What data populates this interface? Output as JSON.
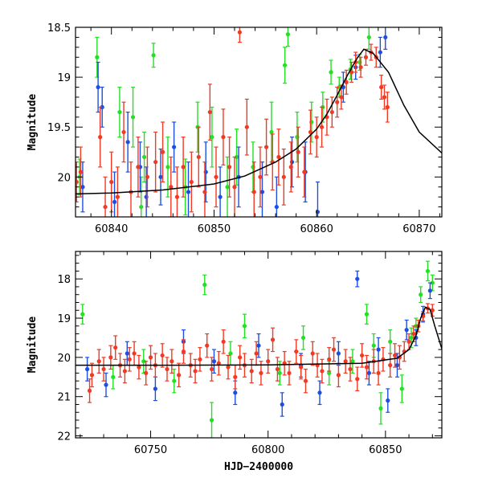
{
  "chart_data": [
    {
      "type": "scatter",
      "title": "",
      "xlabel": "",
      "ylabel": "Magnitude",
      "xlim": [
        60836.5,
        60872.2
      ],
      "ylim": [
        20.4,
        18.5
      ],
      "y_inverted": true,
      "xticks": [
        60840,
        60850,
        60860,
        60870
      ],
      "yticks": [
        18.5,
        19,
        19.5,
        20
      ],
      "ytick_labels": [
        "18.5",
        "19",
        "19.5",
        "20"
      ],
      "colors": {
        "green": "#22e022",
        "blue": "#1c4fe0",
        "red": "#f03a24",
        "model": "#000000"
      },
      "model_curve": {
        "x": [
          60836.5,
          60840,
          60845,
          60850,
          60853,
          60856,
          60858,
          60860,
          60861,
          60862,
          60863,
          60864,
          60864.6,
          60865.5,
          60867,
          60868.5,
          60870,
          60872.2
        ],
        "y": [
          20.17,
          20.16,
          20.13,
          20.07,
          19.99,
          19.85,
          19.72,
          19.52,
          19.37,
          19.18,
          18.98,
          18.8,
          18.72,
          18.76,
          18.95,
          19.28,
          19.55,
          19.76
        ]
      },
      "series": [
        {
          "color": "green",
          "x": [
            60836.9,
            60838.6,
            60840.8,
            60842.1,
            60842.9,
            60843.2,
            60844.1,
            60845.5,
            60847.2,
            60848.4,
            60849.8,
            60851.3,
            60852.2,
            60853.8,
            60855.6,
            60856.9,
            60857.2,
            60858.1,
            60859.5,
            60860.6,
            60861.4,
            60862.2,
            60863.3,
            60864.2,
            60865.1
          ],
          "y": [
            20.0,
            18.8,
            19.35,
            19.4,
            20.3,
            19.8,
            18.78,
            19.9,
            20.1,
            19.5,
            19.6,
            20.1,
            19.8,
            19.9,
            19.55,
            18.88,
            18.57,
            19.6,
            19.45,
            19.3,
            18.95,
            19.1,
            18.92,
            18.85,
            18.6
          ],
          "err": [
            0.18,
            0.2,
            0.25,
            0.3,
            0.3,
            0.25,
            0.12,
            0.3,
            0.28,
            0.25,
            0.3,
            0.3,
            0.28,
            0.25,
            0.3,
            0.18,
            0.12,
            0.25,
            0.2,
            0.15,
            0.12,
            0.1,
            0.1,
            0.08,
            0.12
          ]
        },
        {
          "color": "blue",
          "x": [
            60837.2,
            60838.7,
            60839.1,
            60840.3,
            60841.6,
            60842.8,
            60843.4,
            60844.8,
            60846.1,
            60847.5,
            60849.2,
            60850.6,
            60852.4,
            60854.7,
            60856.1,
            60857.6,
            60858.9,
            60860.1,
            60862.6,
            60863.8,
            60866.2,
            60866.7
          ],
          "y": [
            20.1,
            19.1,
            19.3,
            20.25,
            19.65,
            19.9,
            20.2,
            20.0,
            19.7,
            20.15,
            19.95,
            20.2,
            20.0,
            20.15,
            20.3,
            19.85,
            19.95,
            20.35,
            19.1,
            18.9,
            18.75,
            18.6
          ],
          "err": [
            0.25,
            0.25,
            0.2,
            0.3,
            0.3,
            0.25,
            0.3,
            0.28,
            0.25,
            0.3,
            0.3,
            0.3,
            0.3,
            0.3,
            0.3,
            0.25,
            0.3,
            0.3,
            0.15,
            0.12,
            0.15,
            0.12
          ]
        },
        {
          "color": "red",
          "x": [
            60836.6,
            60837.0,
            60838.9,
            60839.4,
            60840.0,
            60840.6,
            60841.2,
            60841.9,
            60842.6,
            60843.5,
            60844.3,
            60845.0,
            60845.8,
            60846.4,
            60847.0,
            60847.8,
            60848.5,
            60849.1,
            60849.6,
            60850.2,
            60850.9,
            60851.5,
            60852.0,
            60852.5,
            60853.2,
            60853.9,
            60854.5,
            60855.1,
            60855.7,
            60856.3,
            60856.8,
            60857.5,
            60858.2,
            60858.8,
            60859.4,
            60860.0,
            60860.5,
            60861.0,
            60861.5,
            60862.0,
            60862.4,
            60862.9,
            60863.4,
            60863.8,
            60864.3,
            60864.8,
            60865.3,
            60865.8,
            60866.3,
            60866.6,
            60866.9
          ],
          "y": [
            20.05,
            19.95,
            19.6,
            20.3,
            20.05,
            20.2,
            19.55,
            20.15,
            19.9,
            20.0,
            19.85,
            19.75,
            20.1,
            20.2,
            19.9,
            20.05,
            19.8,
            20.15,
            19.35,
            20.0,
            19.6,
            19.9,
            20.1,
            18.55,
            19.5,
            20.15,
            20.0,
            19.7,
            19.85,
            19.8,
            20.0,
            19.9,
            19.75,
            19.95,
            19.55,
            19.6,
            19.5,
            19.4,
            19.35,
            19.25,
            19.2,
            19.05,
            18.95,
            18.85,
            18.9,
            18.8,
            18.75,
            18.8,
            19.1,
            19.2,
            19.3
          ],
          "err": [
            0.2,
            0.25,
            0.3,
            0.3,
            0.3,
            0.3,
            0.3,
            0.3,
            0.3,
            0.3,
            0.3,
            0.3,
            0.3,
            0.3,
            0.3,
            0.3,
            0.3,
            0.3,
            0.28,
            0.3,
            0.28,
            0.3,
            0.3,
            0.1,
            0.28,
            0.3,
            0.3,
            0.28,
            0.28,
            0.28,
            0.28,
            0.25,
            0.25,
            0.25,
            0.22,
            0.2,
            0.2,
            0.18,
            0.15,
            0.15,
            0.12,
            0.12,
            0.1,
            0.1,
            0.1,
            0.08,
            0.08,
            0.1,
            0.12,
            0.12,
            0.15
          ]
        }
      ]
    },
    {
      "type": "scatter",
      "title": "",
      "xlabel": "HJD−2400000",
      "ylabel": "Magnitude",
      "xlim": [
        60718,
        60874
      ],
      "ylim": [
        22.05,
        17.3
      ],
      "y_inverted": true,
      "xticks": [
        60750,
        60800,
        60850
      ],
      "yticks": [
        18,
        19,
        20,
        21,
        22
      ],
      "ytick_labels": [
        "18",
        "19",
        "20",
        "21",
        "22"
      ],
      "colors": {
        "green": "#22e022",
        "blue": "#1c4fe0",
        "red": "#f03a24",
        "model": "#000000"
      },
      "model_curve": {
        "x": [
          60718,
          60760,
          60800,
          60840,
          60855,
          60860,
          60863,
          60865,
          60867,
          60869,
          60871,
          60874
        ],
        "y": [
          20.2,
          20.2,
          20.19,
          20.15,
          20.02,
          19.8,
          19.45,
          19.0,
          18.72,
          18.78,
          19.2,
          19.78
        ]
      },
      "series": [
        {
          "color": "green",
          "x": [
            60721,
            60734,
            60747,
            60760,
            60773,
            60776,
            60784,
            60790,
            60805,
            60815,
            60826,
            60836,
            60842,
            60845,
            60848,
            60852,
            60857,
            60861,
            60863,
            60865,
            60868,
            60870
          ],
          "y": [
            18.9,
            20.5,
            20.1,
            20.6,
            18.15,
            21.6,
            19.9,
            19.2,
            20.4,
            19.5,
            20.4,
            20.1,
            18.9,
            19.7,
            21.3,
            19.6,
            20.8,
            19.5,
            19.2,
            18.4,
            17.8,
            18.1
          ],
          "err": [
            0.25,
            0.3,
            0.3,
            0.3,
            0.25,
            0.45,
            0.3,
            0.3,
            0.3,
            0.3,
            0.3,
            0.3,
            0.25,
            0.3,
            0.4,
            0.3,
            0.35,
            0.25,
            0.2,
            0.2,
            0.25,
            0.2
          ]
        },
        {
          "color": "blue",
          "x": [
            60723,
            60731,
            60740,
            60752,
            60764,
            60777,
            60786,
            60796,
            60806,
            60814,
            60822,
            60830,
            60838,
            60843,
            60847,
            60851,
            60855,
            60859,
            60863,
            60866,
            60869
          ],
          "y": [
            20.3,
            20.7,
            19.9,
            20.8,
            19.6,
            20.1,
            20.9,
            19.7,
            21.2,
            20.2,
            20.9,
            19.9,
            18.0,
            20.4,
            19.8,
            21.1,
            20.2,
            19.3,
            19.5,
            18.9,
            18.3
          ],
          "err": [
            0.3,
            0.3,
            0.3,
            0.3,
            0.3,
            0.3,
            0.3,
            0.3,
            0.3,
            0.3,
            0.3,
            0.3,
            0.2,
            0.3,
            0.3,
            0.3,
            0.3,
            0.25,
            0.2,
            0.2,
            0.2
          ]
        },
        {
          "color": "red",
          "x": [
            60724,
            60725,
            60728,
            60730,
            60733,
            60735,
            60737,
            60739,
            60741,
            60743,
            60745,
            60748,
            60750,
            60752,
            60755,
            60757,
            60759,
            60762,
            60764,
            60767,
            60769,
            60771,
            60774,
            60776,
            60779,
            60781,
            60783,
            60786,
            60788,
            60790,
            60793,
            60795,
            60797,
            60800,
            60802,
            60804,
            60807,
            60809,
            60812,
            60814,
            60816,
            60819,
            60821,
            60823,
            60826,
            60828,
            60830,
            60833,
            60835,
            60838,
            60840,
            60842,
            60845,
            60847,
            60849,
            60852,
            60854,
            60856,
            60858,
            60860,
            60862,
            60864,
            60866,
            60868,
            60870
          ],
          "y": [
            20.85,
            20.45,
            20.1,
            20.3,
            20.0,
            19.75,
            20.2,
            20.35,
            20.05,
            19.9,
            20.25,
            20.4,
            20.0,
            20.2,
            19.95,
            20.3,
            20.1,
            20.45,
            19.85,
            20.2,
            20.35,
            20.05,
            19.7,
            20.3,
            20.15,
            19.6,
            20.25,
            20.5,
            20.0,
            20.2,
            20.35,
            19.9,
            20.4,
            20.1,
            19.55,
            20.3,
            20.15,
            20.4,
            19.85,
            20.25,
            20.6,
            19.9,
            20.2,
            20.35,
            20.05,
            19.8,
            20.45,
            20.1,
            20.3,
            20.55,
            19.95,
            20.25,
            20.1,
            20.4,
            20.05,
            20.2,
            19.95,
            20.0,
            19.85,
            19.6,
            19.4,
            19.2,
            18.95,
            18.75,
            18.8
          ],
          "err": [
            0.3,
            0.3,
            0.3,
            0.3,
            0.3,
            0.3,
            0.3,
            0.3,
            0.3,
            0.3,
            0.3,
            0.3,
            0.3,
            0.3,
            0.3,
            0.3,
            0.3,
            0.3,
            0.3,
            0.3,
            0.3,
            0.3,
            0.3,
            0.3,
            0.3,
            0.3,
            0.3,
            0.3,
            0.3,
            0.3,
            0.3,
            0.3,
            0.3,
            0.3,
            0.3,
            0.3,
            0.3,
            0.3,
            0.3,
            0.3,
            0.3,
            0.3,
            0.3,
            0.3,
            0.3,
            0.3,
            0.3,
            0.3,
            0.3,
            0.3,
            0.3,
            0.3,
            0.3,
            0.3,
            0.3,
            0.3,
            0.3,
            0.3,
            0.25,
            0.2,
            0.2,
            0.15,
            0.12,
            0.12,
            0.15
          ]
        }
      ]
    }
  ]
}
